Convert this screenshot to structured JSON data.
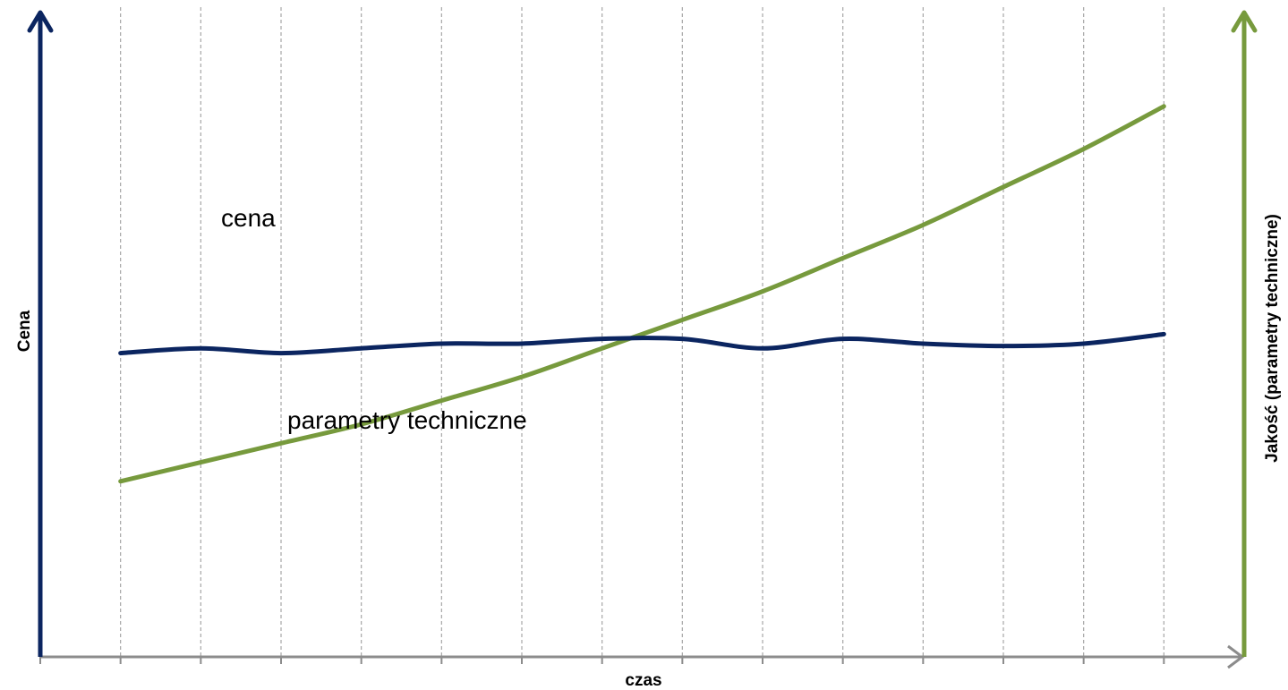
{
  "colors": {
    "price_axis": "#0B2560",
    "quality_axis": "#779A3D",
    "time_axis": "#8C8C8C",
    "gridline": "#A6A6A6",
    "price_series": "#0B2560",
    "quality_series": "#779A3D"
  },
  "chart_data": {
    "type": "line",
    "title": "",
    "xlabel": "czas",
    "ylabel_left": "Cena",
    "ylabel_right": "Jakość (parametry techniczne)",
    "grid": {
      "vertical": true,
      "style": "dashed"
    },
    "x": [
      1,
      2,
      3,
      4,
      5,
      6,
      7,
      8,
      9,
      10,
      11,
      12,
      13,
      14
    ],
    "series": [
      {
        "name": "cena",
        "axis": "left",
        "values": [
          0.64,
          0.65,
          0.64,
          0.65,
          0.66,
          0.66,
          0.67,
          0.67,
          0.65,
          0.67,
          0.66,
          0.655,
          0.66,
          0.68
        ]
      },
      {
        "name": "parametry techniczne",
        "axis": "right",
        "values": [
          0.37,
          0.41,
          0.45,
          0.49,
          0.54,
          0.59,
          0.65,
          0.71,
          0.77,
          0.84,
          0.91,
          0.99,
          1.07,
          1.16
        ]
      }
    ],
    "ylim": [
      0,
      1.35
    ],
    "xlim": [
      0,
      15
    ]
  }
}
